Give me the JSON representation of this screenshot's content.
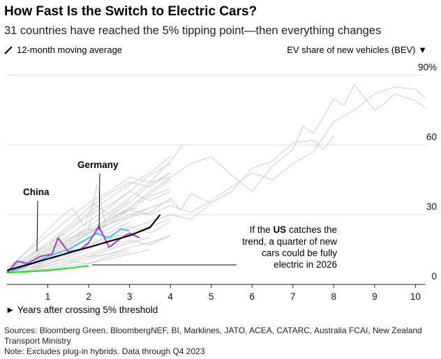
{
  "title": "How Fast Is the Switch to Electric Cars?",
  "subtitle": "31 countries have reached the 5% tipping point—then everything changes",
  "legend_left": "12-month moving average",
  "legend_right": "EV share of new vehicles (BEV) ▼",
  "x_axis_label": "► Years after crossing 5% threshold",
  "sources": "Sources: Bloomberg Green, BloombergNEF, BI, Marklines, JATO, ACEA, CATARC, Australia FCAI, New Zealand Transport Ministry",
  "note": "Note: Excludes plug-in hybrids. Data through Q4 2023",
  "colors": {
    "gray": "#cccccc",
    "black": "#000000",
    "china": "#4fc3f7",
    "germany": "#a64dc9",
    "us": "#2bdb2b",
    "grid": "#dddddd"
  },
  "chart_data": {
    "type": "line",
    "title": "How Fast Is the Switch to Electric Cars?",
    "xlabel": "Years after crossing 5% threshold",
    "ylabel": "EV share of new vehicles (BEV)",
    "xlim": [
      0,
      10.25
    ],
    "ylim": [
      0,
      90
    ],
    "x_ticks": [
      1,
      2,
      3,
      4,
      5,
      6,
      7,
      8,
      9,
      10
    ],
    "y_ticks": [
      0,
      30,
      60,
      90
    ],
    "y_tick_labels": [
      "0",
      "30",
      "60",
      "90%"
    ],
    "highlight_series": [
      {
        "name": "China",
        "color": "#4fc3f7",
        "points": [
          [
            0,
            5
          ],
          [
            0.5,
            8
          ],
          [
            1.0,
            12
          ],
          [
            1.5,
            15
          ],
          [
            1.8,
            18
          ],
          [
            2.2,
            22
          ],
          [
            2.5,
            20
          ],
          [
            2.8,
            24
          ],
          [
            3.0,
            23
          ]
        ]
      },
      {
        "name": "Germany",
        "color": "#a64dc9",
        "points": [
          [
            0,
            5
          ],
          [
            0.25,
            10
          ],
          [
            0.5,
            9
          ],
          [
            0.8,
            12
          ],
          [
            1.1,
            13
          ],
          [
            1.25,
            20
          ],
          [
            1.5,
            14
          ],
          [
            1.8,
            15
          ],
          [
            2.0,
            18
          ],
          [
            2.25,
            25
          ],
          [
            2.5,
            16
          ],
          [
            2.8,
            20
          ],
          [
            3.0,
            22
          ],
          [
            3.25,
            20
          ]
        ]
      },
      {
        "name": "US",
        "color": "#2bdb2b",
        "points": [
          [
            0,
            5
          ],
          [
            0.5,
            5.5
          ],
          [
            1.0,
            6
          ],
          [
            1.5,
            7
          ],
          [
            2.0,
            8
          ]
        ]
      }
    ],
    "average_line": {
      "name": "12-month moving average",
      "color": "#000000",
      "points": [
        [
          0,
          6
        ],
        [
          0.5,
          8.5
        ],
        [
          1.0,
          11
        ],
        [
          1.5,
          13.5
        ],
        [
          2.0,
          16
        ],
        [
          2.5,
          18.5
        ],
        [
          3.0,
          21
        ],
        [
          3.5,
          24.5
        ],
        [
          3.75,
          30
        ]
      ]
    },
    "background_series": [
      [
        [
          0,
          5
        ],
        [
          0.5,
          9
        ],
        [
          1.0,
          14
        ],
        [
          1.5,
          19
        ],
        [
          2.0,
          25
        ],
        [
          2.5,
          31
        ],
        [
          3.0,
          37
        ],
        [
          3.5,
          44
        ],
        [
          4.0,
          53
        ],
        [
          4.3,
          60
        ]
      ],
      [
        [
          0,
          6
        ],
        [
          0.5,
          10
        ],
        [
          1.0,
          16
        ],
        [
          1.5,
          21
        ],
        [
          2.0,
          27
        ],
        [
          2.5,
          33
        ],
        [
          3.0,
          40
        ],
        [
          3.5,
          47
        ],
        [
          4.0,
          52
        ]
      ],
      [
        [
          0,
          5
        ],
        [
          0.5,
          8
        ],
        [
          1.0,
          12
        ],
        [
          1.5,
          16
        ],
        [
          2.0,
          22
        ],
        [
          2.5,
          29
        ],
        [
          3.0,
          35
        ],
        [
          3.5,
          43
        ],
        [
          4.0,
          48
        ]
      ],
      [
        [
          0,
          6
        ],
        [
          0.5,
          12
        ],
        [
          1.0,
          17
        ],
        [
          1.5,
          23
        ],
        [
          2.0,
          30
        ],
        [
          2.5,
          34
        ],
        [
          3.0,
          40
        ],
        [
          3.5,
          36
        ],
        [
          4.0,
          40
        ]
      ],
      [
        [
          0,
          5
        ],
        [
          0.5,
          7
        ],
        [
          1.0,
          10
        ],
        [
          1.5,
          14
        ],
        [
          2.0,
          20
        ],
        [
          2.5,
          26
        ],
        [
          3.0,
          32
        ],
        [
          3.5,
          38
        ],
        [
          4.0,
          41
        ]
      ],
      [
        [
          0,
          7
        ],
        [
          0.5,
          14
        ],
        [
          1.0,
          21
        ],
        [
          1.5,
          28
        ],
        [
          2.0,
          35
        ],
        [
          2.5,
          40
        ],
        [
          3.0,
          46
        ],
        [
          3.5,
          44
        ],
        [
          4.0,
          46
        ]
      ],
      [
        [
          0,
          6
        ],
        [
          0.4,
          13
        ],
        [
          0.8,
          20
        ],
        [
          1.2,
          27
        ],
        [
          1.6,
          33
        ],
        [
          1.9,
          25
        ],
        [
          2.1,
          35
        ],
        [
          2.5,
          30
        ],
        [
          3.0,
          36
        ]
      ],
      [
        [
          0,
          5
        ],
        [
          0.5,
          9
        ],
        [
          1.0,
          13
        ],
        [
          1.5,
          18
        ],
        [
          2.0,
          23
        ],
        [
          2.2,
          43
        ],
        [
          2.4,
          27
        ],
        [
          2.8,
          31
        ],
        [
          3.2,
          33
        ]
      ],
      [
        [
          0,
          5
        ],
        [
          0.5,
          7
        ],
        [
          1.0,
          9
        ],
        [
          1.5,
          12
        ],
        [
          2.0,
          15
        ],
        [
          2.5,
          19
        ],
        [
          3.0,
          24
        ],
        [
          3.5,
          27
        ],
        [
          4.0,
          30
        ],
        [
          4.5,
          28
        ],
        [
          5.0,
          35
        ]
      ],
      [
        [
          0,
          6
        ],
        [
          0.5,
          8
        ],
        [
          1.0,
          10
        ],
        [
          1.5,
          13
        ],
        [
          2.0,
          17
        ],
        [
          2.5,
          21
        ],
        [
          3.0,
          25
        ],
        [
          3.5,
          22
        ],
        [
          4.0,
          27
        ]
      ],
      [
        [
          0,
          5
        ],
        [
          0.5,
          6
        ],
        [
          1.0,
          8
        ],
        [
          1.5,
          10
        ],
        [
          2.0,
          12
        ],
        [
          2.5,
          15
        ],
        [
          3.0,
          18
        ],
        [
          3.5,
          20
        ]
      ],
      [
        [
          0,
          5
        ],
        [
          0.5,
          7
        ],
        [
          1.0,
          9
        ],
        [
          1.5,
          11
        ],
        [
          2.0,
          13
        ],
        [
          2.5,
          16
        ],
        [
          3.0,
          19
        ],
        [
          3.5,
          17
        ],
        [
          4.0,
          21
        ]
      ],
      [
        [
          0,
          6
        ],
        [
          0.5,
          9
        ],
        [
          1.0,
          12
        ],
        [
          1.5,
          15
        ],
        [
          2.0,
          20
        ],
        [
          2.5,
          24
        ],
        [
          3.0,
          29
        ],
        [
          3.5,
          33
        ]
      ],
      [
        [
          0,
          5
        ],
        [
          0.5,
          6
        ],
        [
          1.0,
          7
        ],
        [
          1.5,
          9
        ],
        [
          2.0,
          11
        ],
        [
          2.5,
          13
        ],
        [
          3.0,
          15
        ]
      ],
      [
        [
          0,
          5
        ],
        [
          0.5,
          6
        ],
        [
          1.0,
          6.5
        ],
        [
          1.5,
          8
        ],
        [
          2.0,
          9
        ],
        [
          2.5,
          11
        ],
        [
          3.0,
          13
        ],
        [
          3.5,
          15
        ]
      ],
      [
        [
          0,
          6
        ],
        [
          0.5,
          10
        ],
        [
          1.0,
          15
        ],
        [
          1.5,
          20
        ],
        [
          2.0,
          22
        ],
        [
          2.5,
          26
        ],
        [
          3.0,
          30
        ],
        [
          3.5,
          33
        ],
        [
          4.0,
          36
        ]
      ],
      [
        [
          0,
          5
        ],
        [
          0.5,
          8
        ],
        [
          1.0,
          11
        ],
        [
          1.5,
          14
        ],
        [
          2.0,
          17
        ],
        [
          2.5,
          20
        ],
        [
          3.0,
          22
        ],
        [
          3.5,
          25
        ],
        [
          4.0,
          28
        ]
      ],
      [
        [
          0,
          5
        ],
        [
          0.5,
          7
        ],
        [
          1.0,
          8
        ],
        [
          1.5,
          10
        ],
        [
          2.0,
          9
        ],
        [
          2.5,
          12
        ],
        [
          3.0,
          14
        ]
      ],
      [
        [
          0,
          6
        ],
        [
          0.5,
          8
        ],
        [
          1.0,
          12
        ],
        [
          1.5,
          17
        ],
        [
          2.0,
          22
        ],
        [
          2.5,
          28
        ],
        [
          3.0,
          33
        ],
        [
          3.5,
          39
        ],
        [
          4.0,
          45
        ]
      ],
      [
        [
          0,
          5
        ],
        [
          0.5,
          10
        ],
        [
          1.0,
          15
        ],
        [
          1.5,
          19
        ],
        [
          2.0,
          24
        ],
        [
          2.5,
          22
        ],
        [
          3.0,
          27
        ]
      ],
      [
        [
          0,
          5
        ],
        [
          0.5,
          6
        ],
        [
          1.0,
          8
        ],
        [
          1.5,
          10
        ],
        [
          2.0,
          12
        ],
        [
          2.5,
          13
        ],
        [
          3.0,
          16
        ],
        [
          3.5,
          18
        ],
        [
          4.0,
          21
        ]
      ],
      [
        [
          0,
          5
        ],
        [
          0.5,
          9
        ],
        [
          1.0,
          14
        ],
        [
          1.5,
          19
        ],
        [
          2.0,
          24
        ],
        [
          2.5,
          28
        ],
        [
          3.0,
          32
        ],
        [
          3.5,
          30
        ],
        [
          4.0,
          34
        ],
        [
          4.5,
          31
        ],
        [
          5.0,
          36
        ],
        [
          5.5,
          42
        ],
        [
          6.0,
          48
        ],
        [
          6.5,
          45
        ],
        [
          7.0,
          52
        ],
        [
          7.5,
          57
        ],
        [
          8.0,
          70
        ],
        [
          8.5,
          75
        ],
        [
          9.0,
          82
        ],
        [
          9.5,
          85
        ],
        [
          10.0,
          84
        ],
        [
          10.25,
          80
        ]
      ],
      [
        [
          0,
          5
        ],
        [
          0.5,
          8
        ],
        [
          1.0,
          12
        ],
        [
          1.5,
          17
        ],
        [
          2.0,
          22
        ],
        [
          2.5,
          27
        ],
        [
          3.0,
          33
        ],
        [
          3.5,
          40
        ],
        [
          4.0,
          46
        ],
        [
          4.5,
          52
        ],
        [
          5.0,
          55
        ],
        [
          5.5,
          47
        ],
        [
          6.0,
          40
        ],
        [
          6.5,
          51
        ],
        [
          7.0,
          58
        ],
        [
          7.25,
          68
        ],
        [
          7.5,
          65
        ],
        [
          7.75,
          72
        ],
        [
          8.0,
          80
        ],
        [
          8.25,
          77
        ],
        [
          8.5,
          86
        ],
        [
          9.0,
          75
        ],
        [
          9.25,
          78
        ],
        [
          9.5,
          82
        ],
        [
          10.0,
          79
        ],
        [
          10.25,
          76
        ]
      ],
      [
        [
          0,
          6
        ],
        [
          0.5,
          11
        ],
        [
          1.0,
          17
        ],
        [
          1.5,
          24
        ],
        [
          2.0,
          31
        ],
        [
          2.5,
          37
        ],
        [
          3.0,
          43
        ],
        [
          3.5,
          48
        ],
        [
          4.0,
          55
        ]
      ],
      [
        [
          0,
          5
        ],
        [
          0.5,
          9
        ],
        [
          1.0,
          13
        ],
        [
          1.5,
          18
        ],
        [
          2.0,
          23
        ],
        [
          2.5,
          26
        ],
        [
          3.0,
          29
        ],
        [
          3.5,
          31
        ],
        [
          4.0,
          37
        ],
        [
          4.25,
          32
        ],
        [
          4.5,
          39
        ],
        [
          5.0,
          35
        ],
        [
          5.5,
          40
        ],
        [
          6.0,
          50
        ],
        [
          6.5,
          53
        ],
        [
          7.0,
          61
        ],
        [
          7.5,
          62
        ],
        [
          7.75,
          58
        ],
        [
          8.0,
          64
        ]
      ],
      [
        [
          0,
          6
        ],
        [
          0.5,
          12
        ],
        [
          1.0,
          18
        ],
        [
          1.5,
          25
        ],
        [
          2.0,
          33
        ],
        [
          2.5,
          39
        ],
        [
          3.0,
          44
        ],
        [
          3.5,
          42
        ],
        [
          4.0,
          48
        ]
      ]
    ],
    "annotations": {
      "china_label": "China",
      "germany_label": "Germany",
      "us_prefix": "If the ",
      "us_bold": "US",
      "us_suffix": " catches the",
      "us_line2": "trend, a quarter of new",
      "us_line3": "cars could be fully",
      "us_line4": "electric in 2026"
    }
  }
}
